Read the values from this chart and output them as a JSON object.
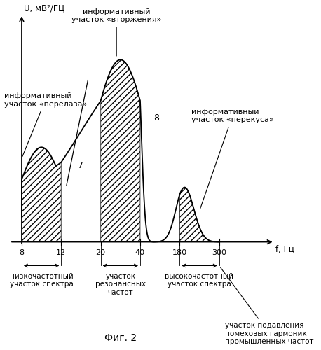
{
  "title": "Фиг. 2",
  "ylabel": "U, мВ²/ГЦ",
  "xlabel": "f, Гц",
  "xtick_labels": [
    "8",
    "12",
    "20",
    "40",
    "180",
    "300"
  ],
  "xtick_pos": [
    0,
    1,
    2,
    3,
    4,
    5
  ],
  "background_color": "#ffffff",
  "annotations": {
    "vtorzheniya": "информативный\nучасток «вторжения»",
    "perelaza": "информативный\nучасток «перелаза»",
    "perekusa": "информативный\nучасток «перекуса»",
    "nizkoch": "низкочастотный\nучасток спектра",
    "rezonans": "участок\nрезонансных\nчастот",
    "vysokoch": "высокочастотный\nучасток спектра",
    "podavleniya": "участок подавления\nпомеховых гармоник\nпромышленных частот"
  }
}
